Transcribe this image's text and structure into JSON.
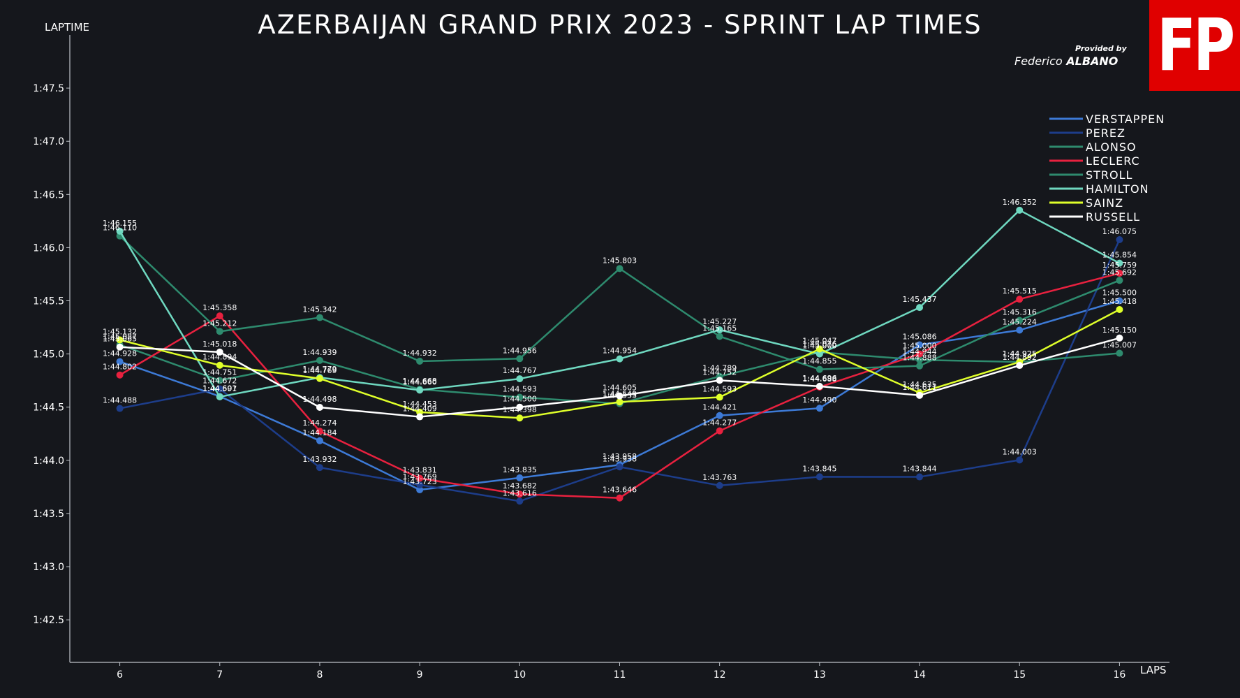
{
  "header": {
    "title": "AZERBAIJAN GRAND PRIX 2023 - SPRINT LAP TIMES",
    "logo_text": "FP",
    "credit_small": "Provided by",
    "credit_first": "Federico",
    "credit_last": "ALBANO"
  },
  "chart_data": {
    "type": "line",
    "title": "AZERBAIJAN GRAND PRIX 2023 - SPRINT LAP TIMES",
    "xlabel": "LAPS",
    "ylabel": "LAPTIME",
    "x": [
      6,
      7,
      8,
      9,
      10,
      11,
      12,
      13,
      14,
      15,
      16
    ],
    "xlim": [
      5.5,
      16.5
    ],
    "ylim": [
      102.1,
      108.0
    ],
    "y_ticks": [
      102.5,
      103.0,
      103.5,
      104.0,
      104.5,
      105.0,
      105.5,
      106.0,
      106.5,
      107.0,
      107.5
    ],
    "y_tick_labels": [
      "1:42.5",
      "1:43.0",
      "1:43.5",
      "1:44.0",
      "1:44.5",
      "1:45.0",
      "1:45.5",
      "1:46.0",
      "1:46.5",
      "1:47.0",
      "1:47.5"
    ],
    "grid": false,
    "legend_position": "top-right",
    "series": [
      {
        "name": "VERSTAPPEN",
        "color": "#3d7ad6",
        "values": [
          104.928,
          104.601,
          104.184,
          103.723,
          103.835,
          103.958,
          104.421,
          104.49,
          105.086,
          105.224,
          105.5
        ]
      },
      {
        "name": "PEREZ",
        "color": "#1d3d8a",
        "values": [
          104.488,
          104.672,
          103.932,
          103.769,
          103.616,
          103.938,
          103.763,
          103.845,
          103.844,
          104.003,
          106.075
        ]
      },
      {
        "name": "ALONSO",
        "color": "#2e8b6e",
        "values": [
          105.087,
          104.751,
          104.939,
          104.668,
          104.593,
          104.533,
          104.789,
          105.016,
          104.944,
          104.925,
          105.007
        ]
      },
      {
        "name": "LECLERC",
        "color": "#e8213f",
        "values": [
          104.802,
          105.358,
          104.274,
          103.831,
          103.682,
          103.646,
          104.277,
          104.688,
          105.0,
          105.515,
          105.759
        ]
      },
      {
        "name": "STROLL",
        "color": "#2e8b6e",
        "values": [
          106.11,
          105.212,
          105.342,
          104.932,
          104.956,
          105.803,
          105.165,
          104.855,
          104.888,
          105.316,
          105.692
        ]
      },
      {
        "name": "HAMILTON",
        "color": "#6fd8c0",
        "values": [
          106.155,
          104.597,
          104.779,
          104.66,
          104.767,
          104.954,
          105.227,
          105.0,
          105.437,
          106.352,
          105.854
        ]
      },
      {
        "name": "SAINZ",
        "color": "#dfff2a",
        "values": [
          105.132,
          104.894,
          104.769,
          104.453,
          104.398,
          104.549,
          104.593,
          105.047,
          104.635,
          104.925,
          105.418
        ]
      },
      {
        "name": "RUSSELL",
        "color": "#ffffff",
        "values": [
          105.065,
          105.018,
          104.498,
          104.409,
          104.5,
          104.605,
          104.752,
          104.696,
          104.611,
          104.892,
          105.15
        ]
      }
    ]
  }
}
